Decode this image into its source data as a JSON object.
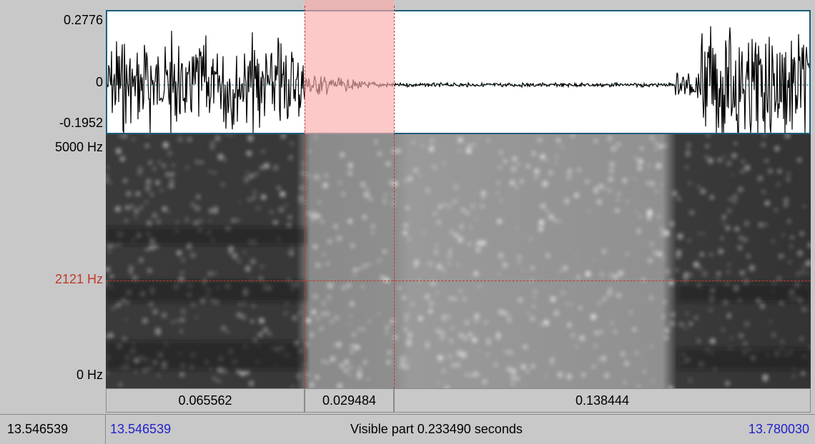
{
  "waveform": {
    "y_max_label": "0.2776",
    "y_zero_label": "0",
    "y_min_label": "-0.1952"
  },
  "spectrogram": {
    "y_top_label": "5000 Hz",
    "y_cursor_label": "2121 Hz",
    "y_bottom_label": "0 Hz"
  },
  "segments": {
    "left_duration": "0.065562",
    "selected_duration": "0.029484",
    "right_duration": "0.138444"
  },
  "status": {
    "window_start": "13.546539",
    "visible_start": "13.546539",
    "visible_part": "Visible part 0.233490 seconds",
    "visible_end": "13.780030"
  },
  "colors": {
    "selection": "#faaaaa",
    "cursor": "#c0392b",
    "time_link": "#2222cc",
    "panel_border": "#1a5f7a"
  }
}
